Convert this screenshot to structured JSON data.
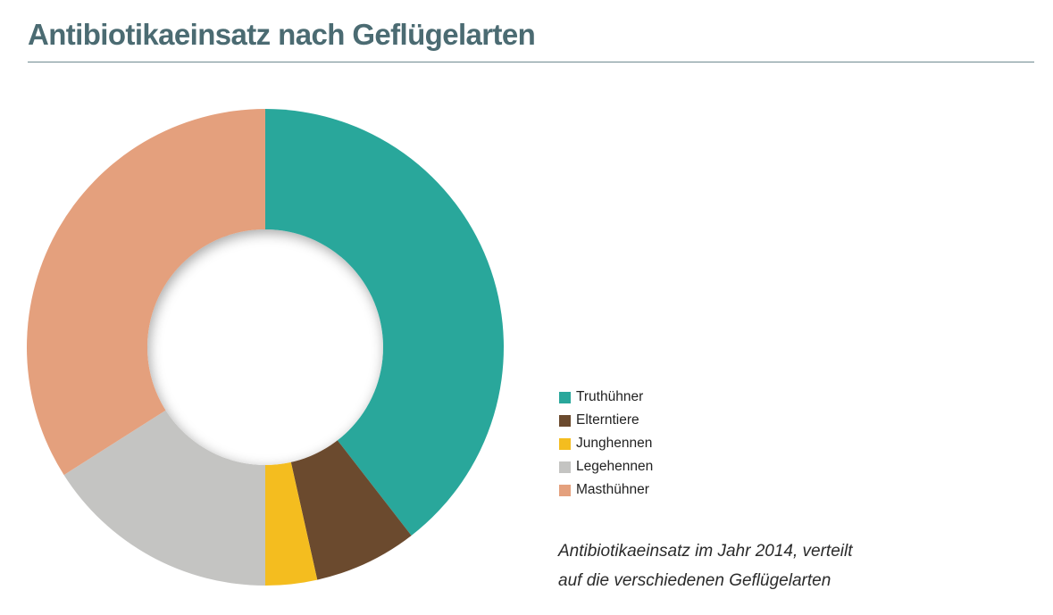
{
  "title": "Antibiotikaeinsatz nach Geflügelarten",
  "caption": {
    "line1": "Antibiotikaeinsatz im Jahr 2014, verteilt",
    "line2": "auf die verschiedenen Geflügelarten"
  },
  "chart_data": {
    "type": "pie",
    "subtype": "donut",
    "title": "Antibiotikaeinsatz nach Geflügelarten",
    "unit": "percent (estimated share)",
    "start": "12 o'clock, clockwise",
    "legend_position": "right",
    "categories": [
      "Truthühner",
      "Elterntiere",
      "Junghennen",
      "Legehennen",
      "Masthühner"
    ],
    "values": [
      39.5,
      7.0,
      3.5,
      16.0,
      34.0
    ],
    "colors": [
      "#29a79b",
      "#6b4a2e",
      "#f4bd1f",
      "#c4c4c2",
      "#e4a07d"
    ]
  }
}
